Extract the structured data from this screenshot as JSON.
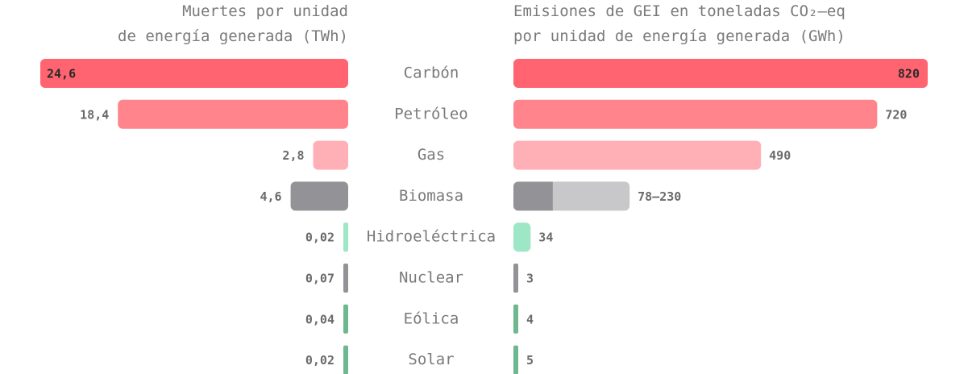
{
  "chart_data": {
    "type": "butterfly",
    "categories": [
      "Carbón",
      "Petróleo",
      "Gas",
      "Biomasa",
      "Hidroeléctrica",
      "Nuclear",
      "Eólica",
      "Solar"
    ],
    "series": [
      {
        "name": "Muertes por unidad\nde energía generada (TWh)",
        "values": [
          24.6,
          18.4,
          2.8,
          4.6,
          0.02,
          0.07,
          0.04,
          0.02
        ],
        "value_labels": [
          "24,6",
          "18,4",
          "2,8",
          "4,6",
          "0,02",
          "0,07",
          "0,04",
          "0,02"
        ],
        "colors": [
          "#ff6470",
          "#ff848c",
          "#ffb0b6",
          "#939397",
          "#9de6c6",
          "#939397",
          "#6db88e",
          "#6db88e"
        ]
      },
      {
        "name": "Emisiones de GEI en toneladas CO₂–eq\npor unidad de energía generada (GWh)",
        "values": [
          820,
          720,
          490,
          78,
          34,
          3,
          4,
          5
        ],
        "high_values": [
          null,
          null,
          null,
          230,
          null,
          null,
          null,
          null
        ],
        "value_labels": [
          "820",
          "720",
          "490",
          "78–230",
          "34",
          "3",
          "4",
          "5"
        ],
        "colors": [
          "#ff6470",
          "#ff848c",
          "#ffb0b6",
          "#939397",
          "#9de6c6",
          "#939397",
          "#6db88e",
          "#6db88e"
        ],
        "high_colors": [
          null,
          null,
          null,
          "#c8c8ca",
          null,
          null,
          null,
          null
        ]
      }
    ]
  }
}
